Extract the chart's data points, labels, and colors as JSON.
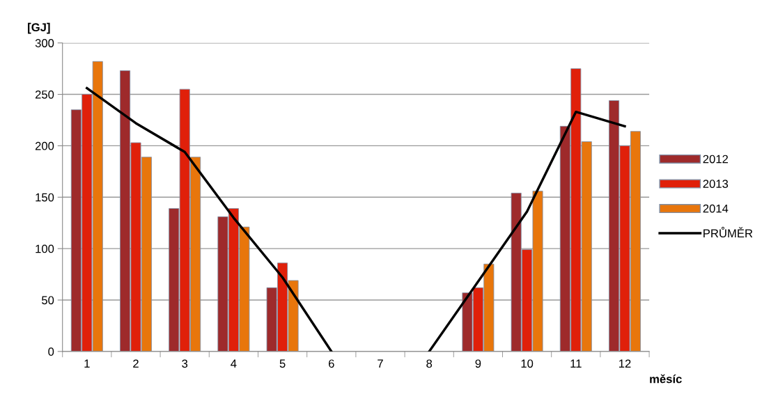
{
  "chart_data": {
    "type": "bar",
    "ylabel": "[GJ]",
    "xlabel": "měsíc",
    "categories": [
      "1",
      "2",
      "3",
      "4",
      "5",
      "6",
      "7",
      "8",
      "9",
      "10",
      "11",
      "12"
    ],
    "series": [
      {
        "name": "2012",
        "color": "#9e2a2b",
        "values": [
          235,
          273,
          139,
          131,
          62,
          null,
          null,
          null,
          57,
          154,
          219,
          244
        ]
      },
      {
        "name": "2013",
        "color": "#e0200a",
        "values": [
          250,
          203,
          255,
          139,
          86,
          null,
          null,
          null,
          62,
          99,
          275,
          200
        ]
      },
      {
        "name": "2014",
        "color": "#e8760c",
        "values": [
          282,
          189,
          189,
          121,
          69,
          null,
          null,
          null,
          85,
          156,
          204,
          214
        ]
      },
      {
        "name": "PRŮMĚR",
        "type": "line",
        "color": "#000000",
        "values": [
          256,
          222,
          194,
          130,
          72,
          0,
          null,
          0,
          68,
          136,
          233,
          219
        ]
      }
    ],
    "ylim": [
      0,
      300
    ],
    "yticks": [
      0,
      50,
      100,
      150,
      200,
      250,
      300
    ],
    "grid": "y",
    "legend": "right"
  }
}
